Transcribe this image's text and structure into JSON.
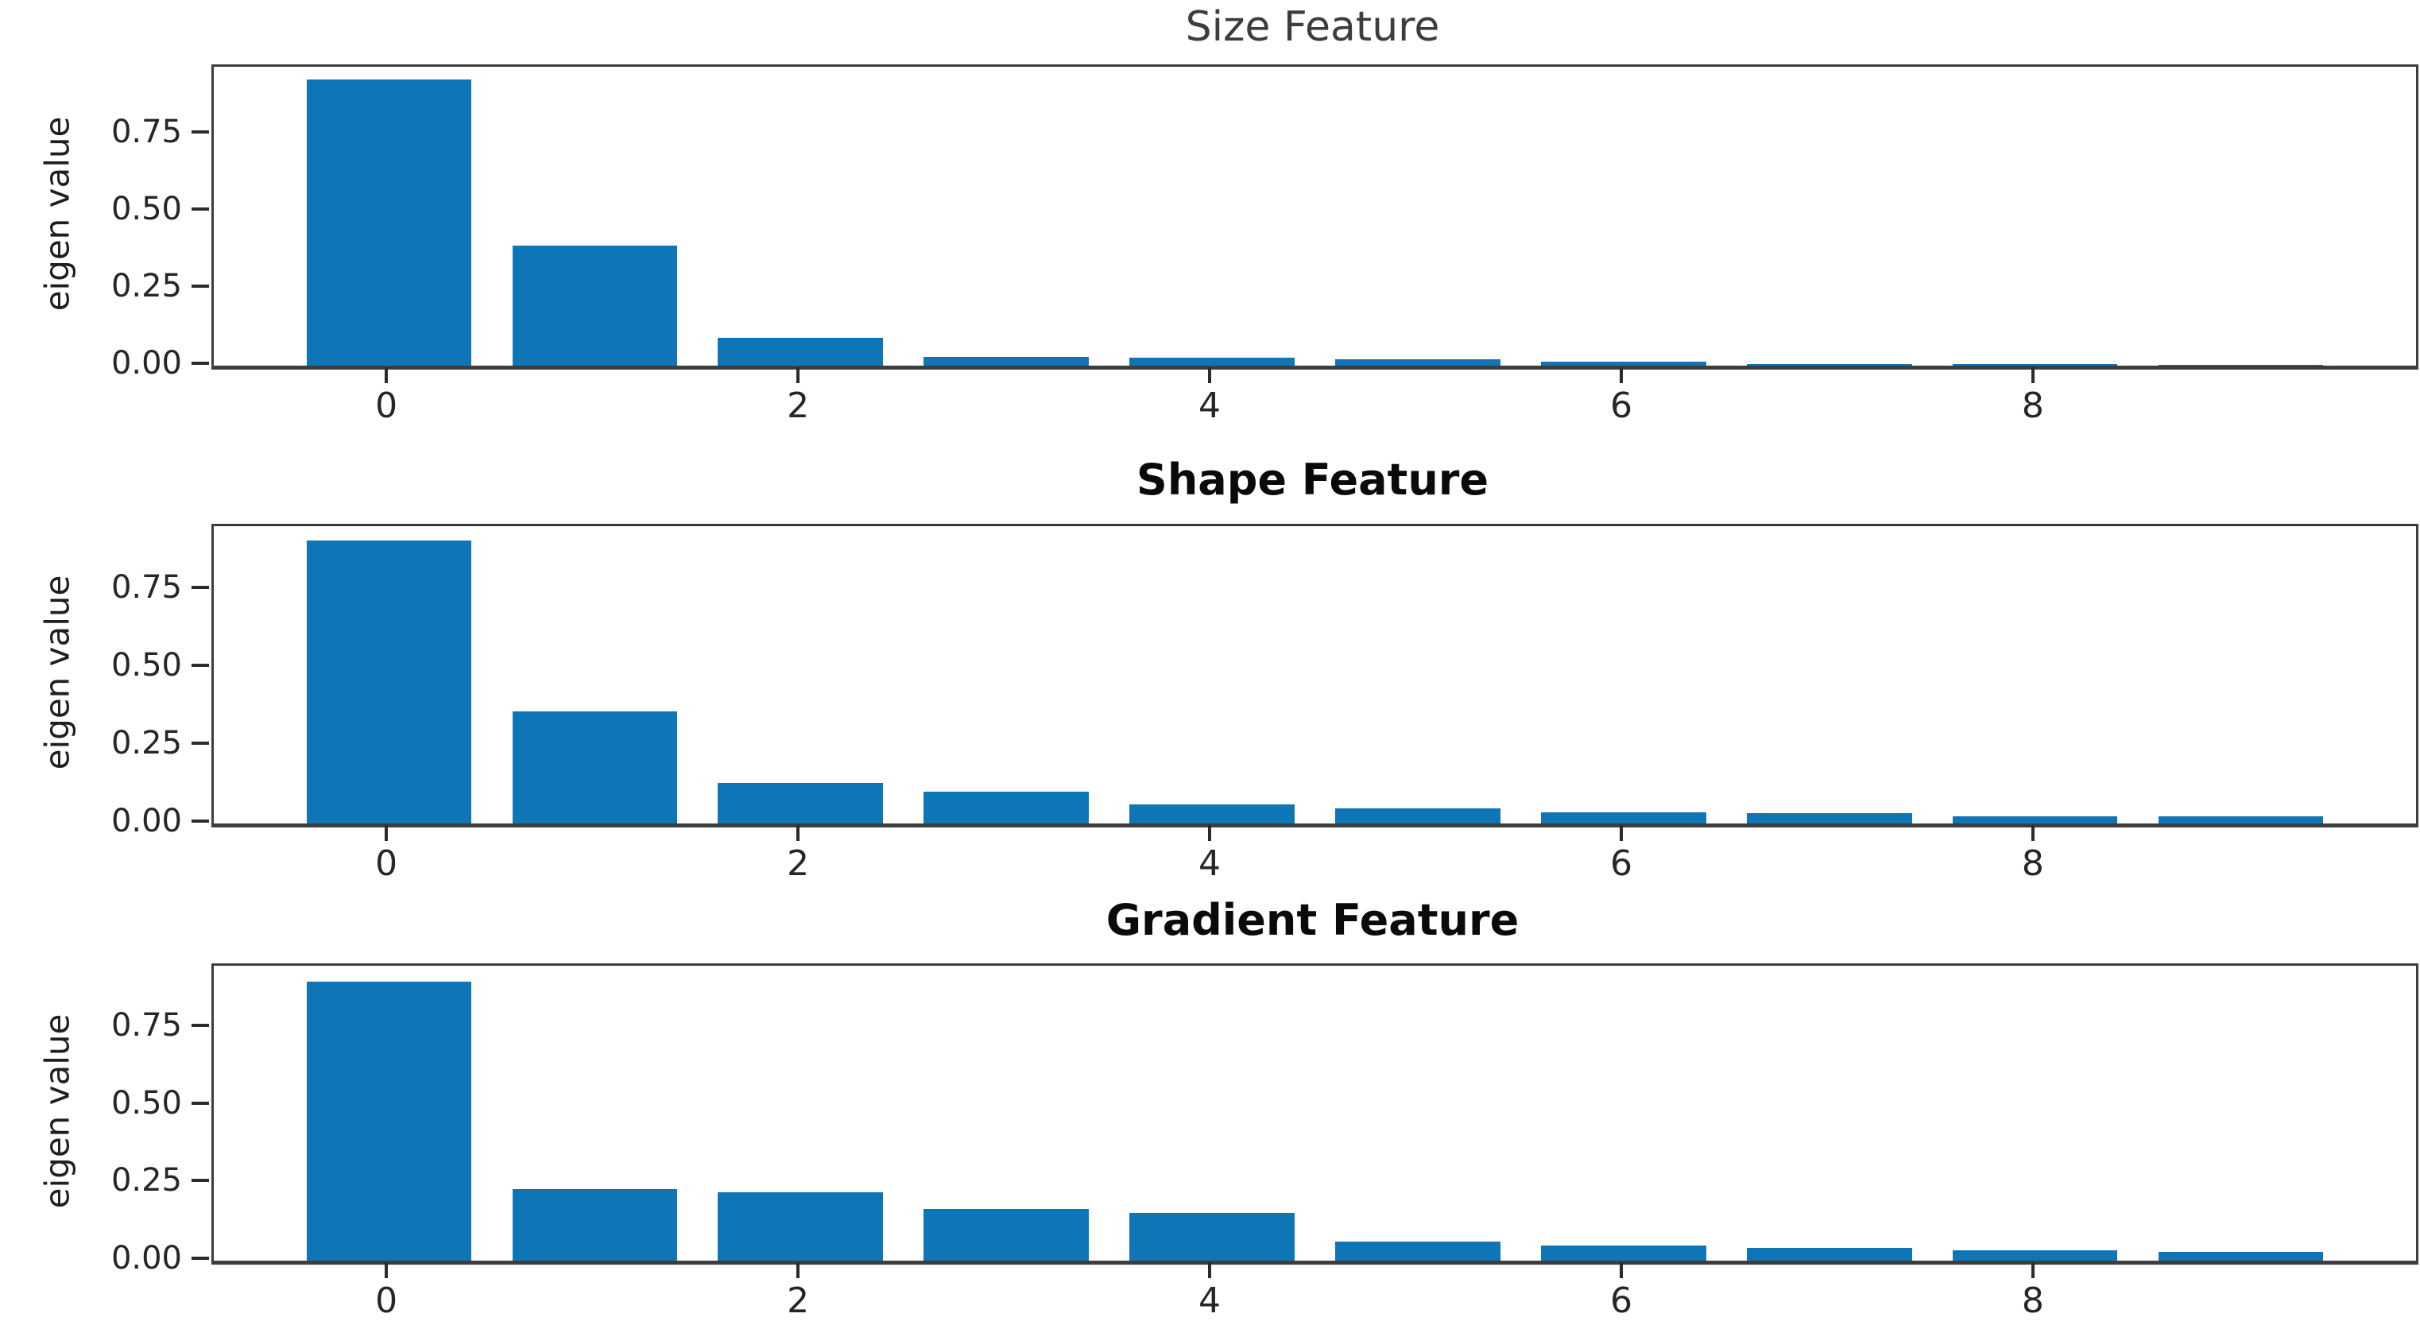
{
  "figure_title": "",
  "shared": {
    "y_axis_label": "eigen value",
    "bar_color": "#0e76b7",
    "spine_color": "#3d3d3d"
  },
  "chart_data": [
    {
      "type": "bar",
      "title": "Size Feature",
      "title_bold": false,
      "xlabel": "",
      "ylabel": "eigen value",
      "categories": [
        0,
        1,
        2,
        3,
        4,
        5,
        6,
        7,
        8,
        9
      ],
      "values": [
        0.93,
        0.39,
        0.09,
        0.028,
        0.026,
        0.021,
        0.013,
        0.005,
        0.004,
        0.003
      ],
      "bar_color": "#0e76b7",
      "bar_width": 0.8,
      "x_tick_values": [
        0,
        2,
        4,
        6,
        8
      ],
      "x_tick_labels": [
        "0",
        "2",
        "4",
        "6",
        "8"
      ],
      "y_tick_values": [
        0.0,
        0.25,
        0.5,
        0.75
      ],
      "y_tick_labels": [
        "0.00",
        "0.25",
        "0.50",
        "0.75"
      ],
      "xlim": [
        -0.85,
        9.85
      ],
      "ylim": [
        0,
        0.97
      ],
      "grid": false,
      "legend": null
    },
    {
      "type": "bar",
      "title": "Shape Feature",
      "title_bold": true,
      "xlabel": "",
      "ylabel": "eigen value",
      "categories": [
        0,
        1,
        2,
        3,
        4,
        5,
        6,
        7,
        8,
        9
      ],
      "values": [
        0.91,
        0.36,
        0.13,
        0.102,
        0.062,
        0.048,
        0.036,
        0.033,
        0.023,
        0.023
      ],
      "bar_color": "#0e76b7",
      "bar_width": 0.8,
      "x_tick_values": [
        0,
        2,
        4,
        6,
        8
      ],
      "x_tick_labels": [
        "0",
        "2",
        "4",
        "6",
        "8"
      ],
      "y_tick_values": [
        0.0,
        0.25,
        0.5,
        0.75
      ],
      "y_tick_labels": [
        "0.00",
        "0.25",
        "0.50",
        "0.75"
      ],
      "xlim": [
        -0.85,
        9.85
      ],
      "ylim": [
        0,
        0.955
      ],
      "grid": false,
      "legend": null
    },
    {
      "type": "bar",
      "title": "Gradient Feature",
      "title_bold": true,
      "xlabel": "",
      "ylabel": "eigen value",
      "categories": [
        0,
        1,
        2,
        3,
        4,
        5,
        6,
        7,
        8,
        9
      ],
      "values": [
        0.9,
        0.23,
        0.22,
        0.166,
        0.153,
        0.061,
        0.049,
        0.041,
        0.034,
        0.027
      ],
      "bar_color": "#0e76b7",
      "bar_width": 0.8,
      "x_tick_values": [
        0,
        2,
        4,
        6,
        8
      ],
      "x_tick_labels": [
        "0",
        "2",
        "4",
        "6",
        "8"
      ],
      "y_tick_values": [
        0.0,
        0.25,
        0.5,
        0.75
      ],
      "y_tick_labels": [
        "0.00",
        "0.25",
        "0.50",
        "0.75"
      ],
      "xlim": [
        -0.85,
        9.85
      ],
      "ylim": [
        0,
        0.95
      ],
      "grid": false,
      "legend": null
    }
  ]
}
